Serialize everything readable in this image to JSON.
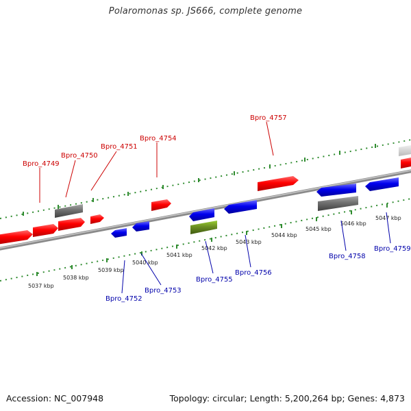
{
  "title": "Polaromonas sp. JS666, complete genome",
  "footer": {
    "accession": "Accession: NC_007948",
    "summary": "Topology: circular; Length: 5,200,264 bp; Genes: 4,873"
  },
  "colors": {
    "forward_gene": "#ff0000",
    "reverse_gene": "#0000ee",
    "rna_or_other": "#707070",
    "highlight": "#6b8e23",
    "forward_label": "#cc0000",
    "reverse_label": "#0000aa",
    "tick": "#2e8b2e"
  },
  "scale": {
    "labels": [
      "5037 kbp",
      "5038 kbp",
      "5039 kbp",
      "5040 kbp",
      "5041 kbp",
      "5042 kbp",
      "5043 kbp",
      "5044 kbp",
      "5045 kbp",
      "5046 kbp",
      "5047 kbp"
    ]
  },
  "genes_forward": [
    {
      "label": "Bpro_4749"
    },
    {
      "label": "Bpro_4750"
    },
    {
      "label": "Bpro_4751"
    },
    {
      "label": "Bpro_4754"
    },
    {
      "label": "Bpro_4757"
    }
  ],
  "genes_reverse": [
    {
      "label": "Bpro_4752"
    },
    {
      "label": "Bpro_4753"
    },
    {
      "label": "Bpro_4755"
    },
    {
      "label": "Bpro_4756"
    },
    {
      "label": "Bpro_4758"
    },
    {
      "label": "Bpro_4759"
    }
  ]
}
